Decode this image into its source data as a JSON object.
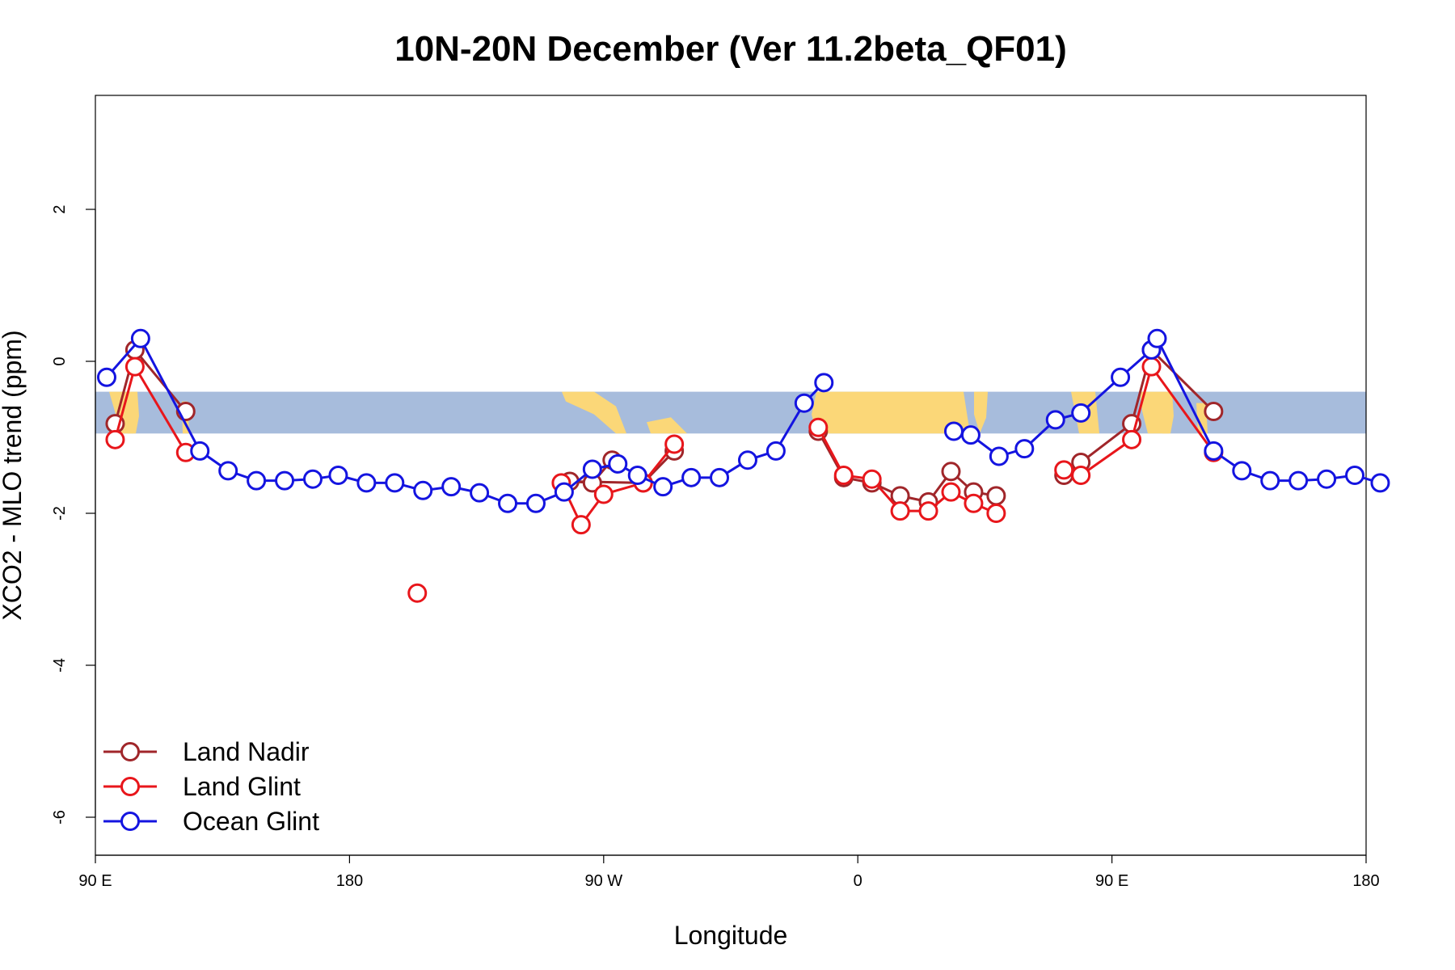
{
  "chart_data": {
    "type": "line",
    "title": "10N-20N December (Ver 11.2beta_QF01)",
    "xlabel": "Longitude",
    "ylabel": "XCO2 - MLO trend (ppm)",
    "xlim": [
      90,
      540
    ],
    "ylim": [
      -6.5,
      3.5
    ],
    "x_ticks": [
      {
        "value": 90,
        "label": "90 E"
      },
      {
        "value": 180,
        "label": "180"
      },
      {
        "value": 270,
        "label": "90 W"
      },
      {
        "value": 360,
        "label": "0"
      },
      {
        "value": 450,
        "label": "90 E"
      },
      {
        "value": 540,
        "label": "180"
      }
    ],
    "y_ticks": [
      {
        "value": 2,
        "label": "2"
      },
      {
        "value": 0,
        "label": "0"
      },
      {
        "value": -2,
        "label": "-2"
      },
      {
        "value": -4,
        "label": "-4"
      },
      {
        "value": -6,
        "label": "-6"
      }
    ],
    "map_band": {
      "y_range": [
        -0.95,
        -0.4
      ],
      "ocean_color": "#a7bcdc",
      "land_color": "#fbd778"
    },
    "legend": {
      "position": "bottom-left"
    },
    "series": [
      {
        "name": "Land Nadir",
        "color": "#a0262a",
        "segments": [
          [
            [
              97,
              -0.82
            ],
            [
              104,
              0.15
            ],
            [
              122,
              -0.66
            ]
          ],
          [
            [
              273,
              -1.3
            ],
            [
              266,
              -1.6
            ],
            [
              258,
              -1.58
            ],
            [
              284,
              -1.6
            ],
            [
              295,
              -1.18
            ]
          ],
          [
            [
              346,
              -0.92
            ],
            [
              355,
              -1.53
            ],
            [
              365,
              -1.6
            ],
            [
              375,
              -1.77
            ],
            [
              385,
              -1.85
            ],
            [
              393,
              -1.45
            ],
            [
              401,
              -1.72
            ],
            [
              409,
              -1.77
            ]
          ],
          [
            [
              433,
              -1.5
            ],
            [
              439,
              -1.33
            ],
            [
              457,
              -0.82
            ],
            [
              464,
              0.15
            ],
            [
              486,
              -0.66
            ]
          ]
        ]
      },
      {
        "name": "Land Glint",
        "color": "#e8161b",
        "segments": [
          [
            [
              97,
              -1.03
            ],
            [
              104,
              -0.07
            ],
            [
              122,
              -1.2
            ]
          ],
          [
            [
              204,
              -3.05
            ]
          ],
          [
            [
              255,
              -1.6
            ],
            [
              262,
              -2.15
            ],
            [
              270,
              -1.75
            ],
            [
              284,
              -1.6
            ],
            [
              295,
              -1.09
            ]
          ],
          [
            [
              346,
              -0.87
            ],
            [
              355,
              -1.5
            ],
            [
              365,
              -1.55
            ],
            [
              375,
              -1.97
            ],
            [
              385,
              -1.97
            ],
            [
              393,
              -1.72
            ],
            [
              401,
              -1.87
            ],
            [
              409,
              -2.0
            ]
          ],
          [
            [
              433,
              -1.43
            ],
            [
              439,
              -1.5
            ],
            [
              457,
              -1.03
            ],
            [
              464,
              -0.07
            ],
            [
              486,
              -1.2
            ]
          ]
        ]
      },
      {
        "name": "Ocean Glint",
        "color": "#1414e0",
        "segments": [
          [
            [
              94,
              -0.21
            ],
            [
              106,
              0.3
            ],
            [
              127,
              -1.18
            ],
            [
              137,
              -1.44
            ],
            [
              147,
              -1.57
            ],
            [
              157,
              -1.57
            ],
            [
              167,
              -1.55
            ],
            [
              176,
              -1.5
            ],
            [
              186,
              -1.6
            ],
            [
              196,
              -1.6
            ],
            [
              206,
              -1.7
            ],
            [
              216,
              -1.65
            ],
            [
              226,
              -1.73
            ],
            [
              236,
              -1.87
            ],
            [
              246,
              -1.87
            ],
            [
              256,
              -1.72
            ],
            [
              266,
              -1.42
            ],
            [
              275,
              -1.35
            ],
            [
              282,
              -1.5
            ],
            [
              291,
              -1.65
            ],
            [
              301,
              -1.53
            ],
            [
              311,
              -1.53
            ],
            [
              321,
              -1.3
            ],
            [
              331,
              -1.18
            ],
            [
              341,
              -0.55
            ],
            [
              348,
              -0.28
            ]
          ],
          [
            [
              394,
              -0.92
            ],
            [
              400,
              -0.97
            ],
            [
              410,
              -1.25
            ],
            [
              419,
              -1.15
            ],
            [
              430,
              -0.77
            ],
            [
              439,
              -0.68
            ],
            [
              453,
              -0.21
            ],
            [
              464,
              0.15
            ],
            [
              466,
              0.3
            ],
            [
              486,
              -1.18
            ],
            [
              496,
              -1.44
            ],
            [
              506,
              -1.57
            ],
            [
              516,
              -1.57
            ],
            [
              526,
              -1.55
            ],
            [
              536,
              -1.5
            ],
            [
              545,
              -1.6
            ]
          ]
        ]
      }
    ]
  }
}
